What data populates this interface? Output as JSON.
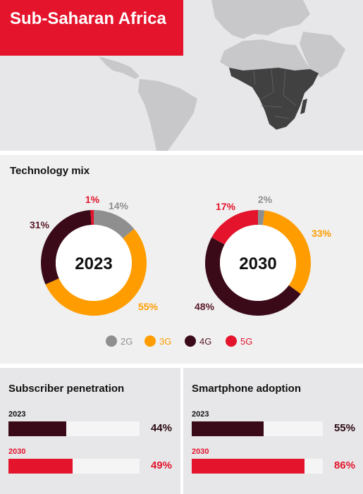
{
  "header": {
    "title": "Sub-Saharan Africa"
  },
  "colors": {
    "2G": "#8f8f8f",
    "3G": "#ff9d00",
    "4G": "#3a0a18",
    "5G": "#e3142c",
    "map_land": "#c8c8ca",
    "map_highlight": "#414141"
  },
  "chart_data": [
    {
      "type": "pie",
      "title": "Technology mix",
      "center_label": "2023",
      "categories": [
        "2G",
        "3G",
        "4G",
        "5G"
      ],
      "values": [
        14,
        55,
        31,
        1
      ],
      "labels": [
        "14%",
        "55%",
        "31%",
        "1%"
      ]
    },
    {
      "type": "pie",
      "center_label": "2030",
      "categories": [
        "2G",
        "3G",
        "4G",
        "5G"
      ],
      "values": [
        2,
        33,
        48,
        17
      ],
      "labels": [
        "2%",
        "33%",
        "48%",
        "17%"
      ]
    },
    {
      "type": "bar",
      "title": "Subscriber penetration",
      "categories": [
        "2023",
        "2030"
      ],
      "values": [
        44,
        49
      ],
      "labels": [
        "44%",
        "49%"
      ],
      "ylim": [
        0,
        100
      ]
    },
    {
      "type": "bar",
      "title": "Smartphone adoption",
      "categories": [
        "2023",
        "2030"
      ],
      "values": [
        55,
        86
      ],
      "labels": [
        "55%",
        "86%"
      ],
      "ylim": [
        0,
        100
      ]
    }
  ],
  "legend": [
    "2G",
    "3G",
    "4G",
    "5G"
  ]
}
